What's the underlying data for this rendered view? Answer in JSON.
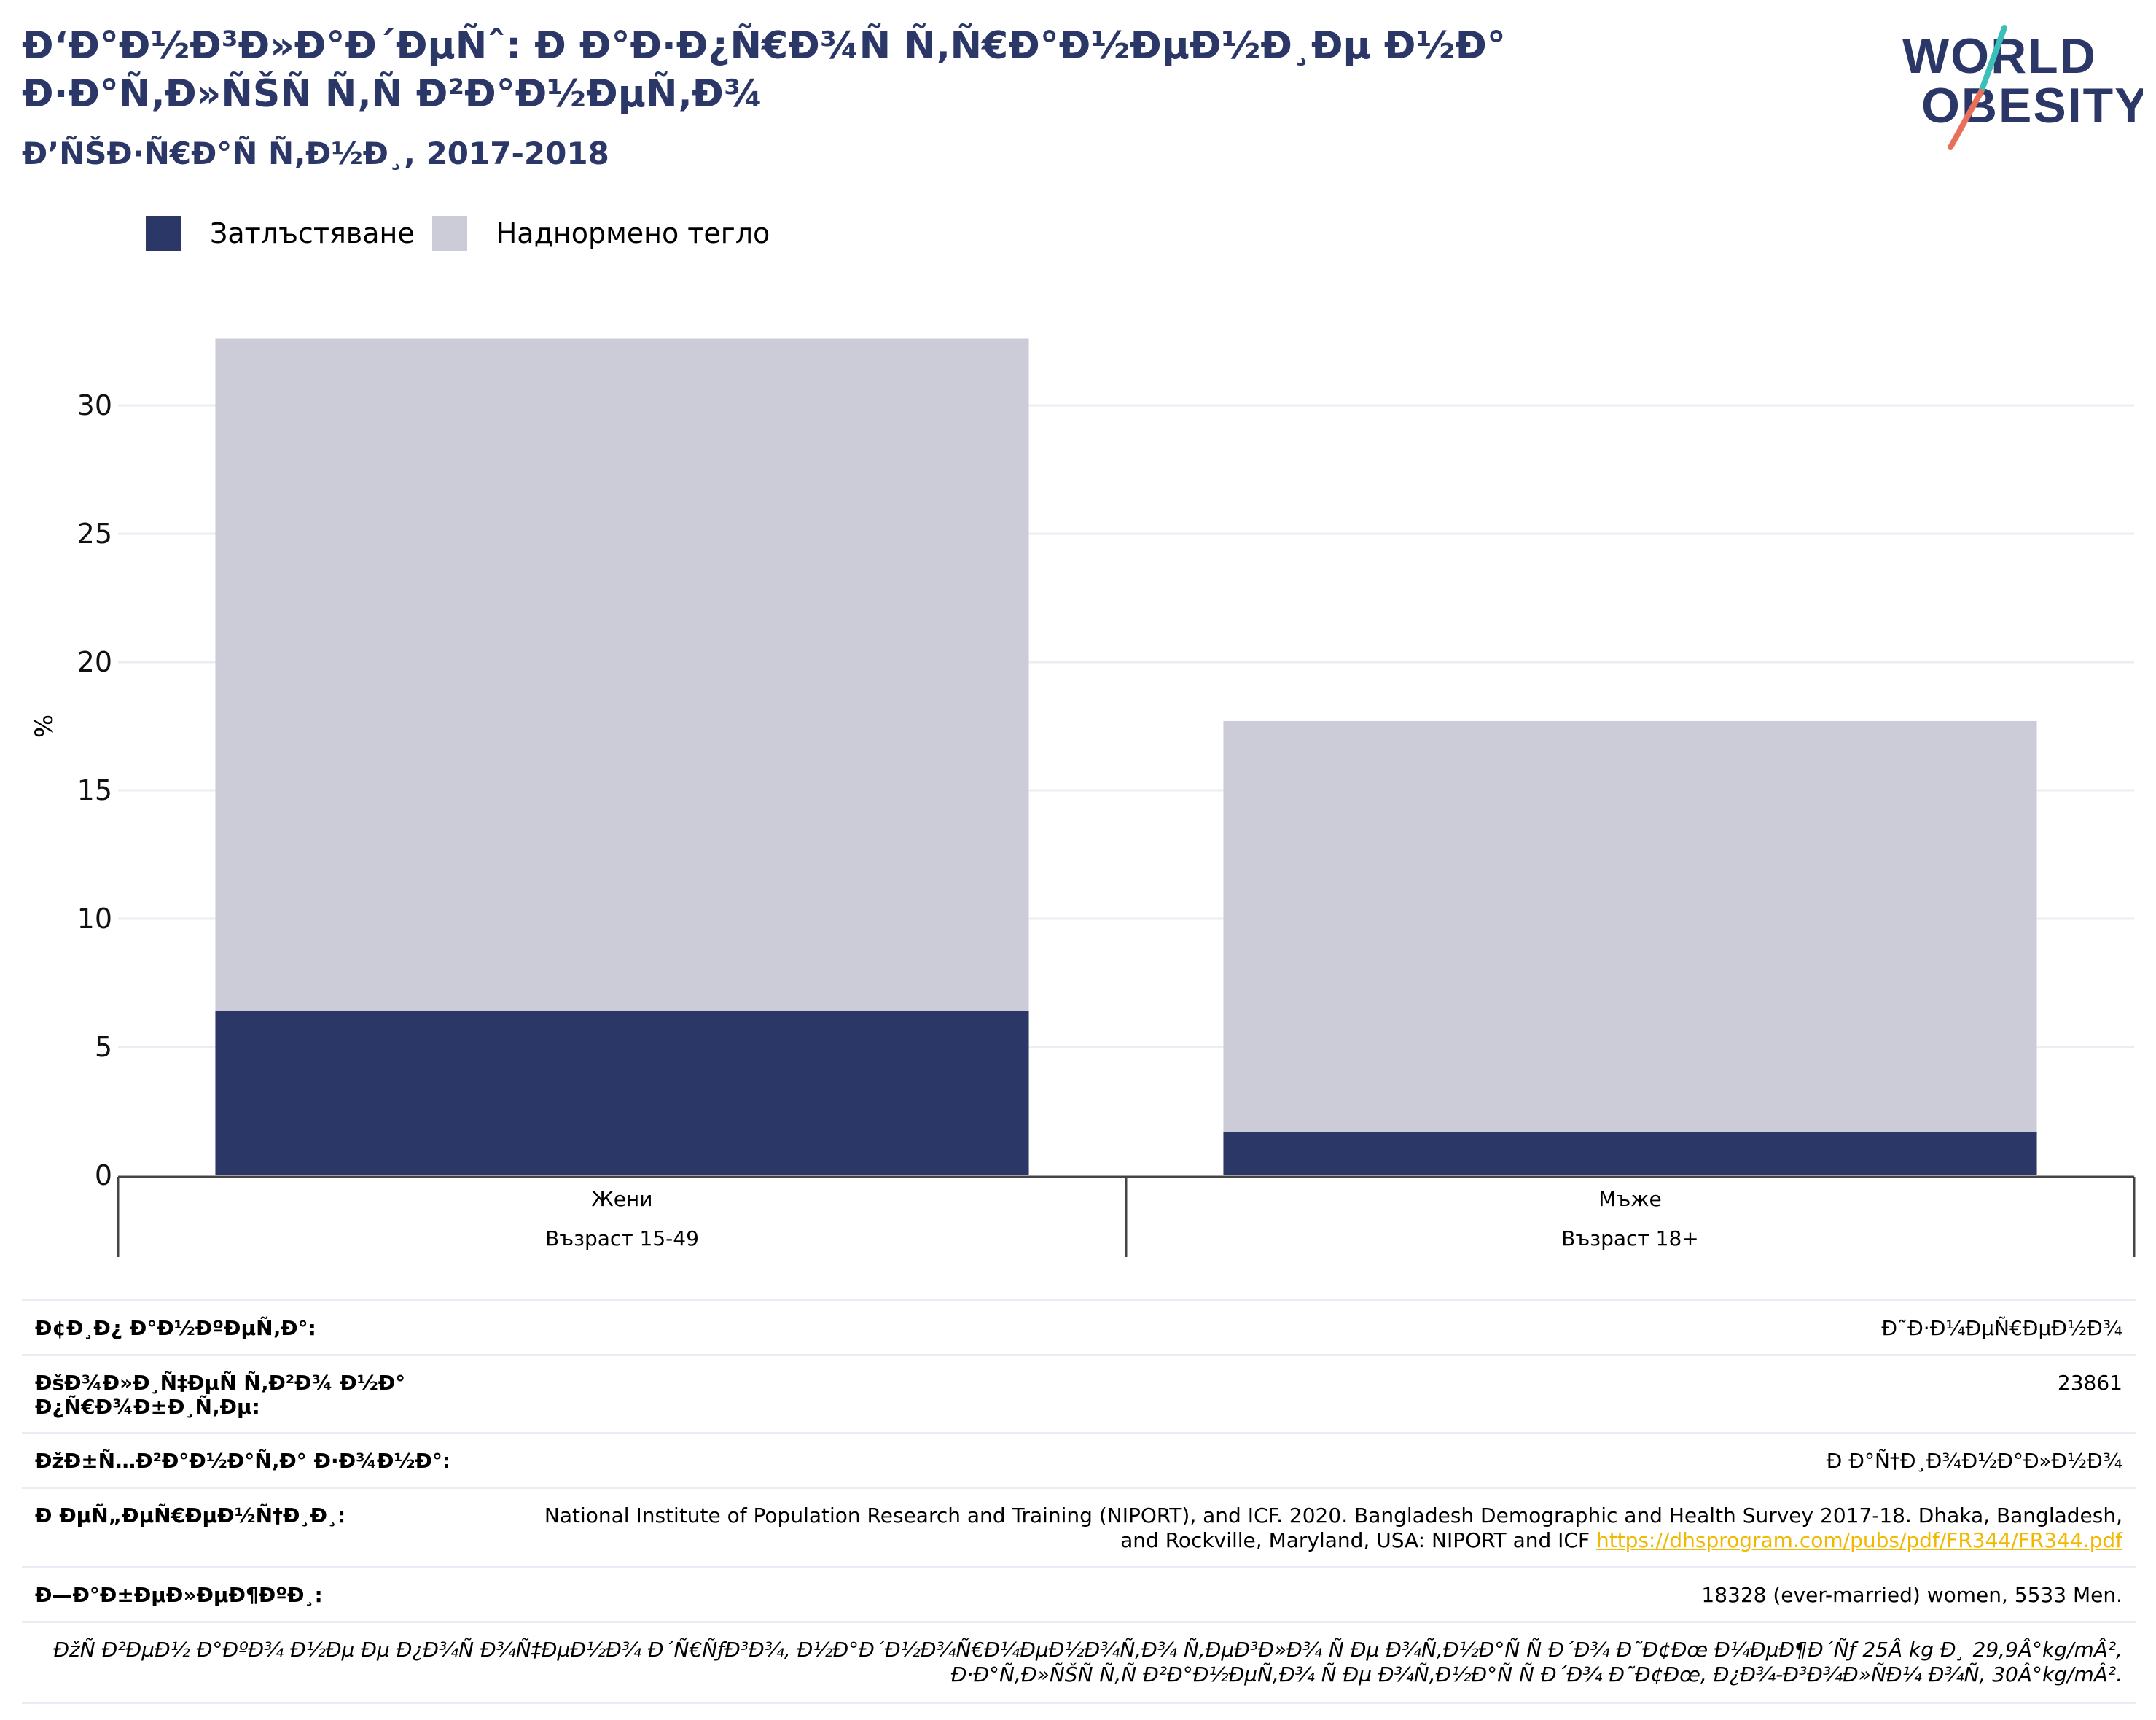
{
  "header": {
    "title": "Ð‘Ð°Ð½Ð³Ð»Ð°Ð´ÐµÑˆ: Ð Ð°Ð·Ð¿Ñ€Ð¾Ñ Ñ‚Ñ€Ð°Ð½ÐµÐ½Ð¸Ðµ Ð½Ð° Ð·Ð°Ñ‚Ð»ÑŠÑ Ñ‚Ñ Ð²Ð°Ð½ÐµÑ‚Ð¾",
    "subtitle": "Ð’ÑŠÐ·Ñ€Ð°Ñ Ñ‚Ð½Ð¸, 2017-2018",
    "logo_line1": "WORLD",
    "logo_line2": "OBESITY"
  },
  "colors": {
    "obesity": "#2b3766",
    "overweight": "#cbccd8",
    "title": "#2b3766",
    "logo_slash_teal": "#3bbfb8",
    "logo_slash_coral": "#e8705a",
    "link": "#f0b800"
  },
  "chart_data": {
    "type": "bar",
    "stacked": true,
    "categories": [
      "Жени",
      "Мъже"
    ],
    "category_sublabels": [
      "Възраст 15-49",
      "Възраст 18+"
    ],
    "series": [
      {
        "name": "Затлъстяване",
        "values": [
          6.4,
          1.7
        ]
      },
      {
        "name": "Наднормено тегло",
        "values": [
          26.2,
          16.0
        ]
      }
    ],
    "ylabel": "%",
    "yticks": [
      0,
      5,
      10,
      15,
      20,
      25,
      30
    ],
    "ylim": [
      0,
      35
    ],
    "grid": true,
    "legend": "top-left"
  },
  "meta": {
    "rows": [
      {
        "key": "Ð¢Ð¸Ð¿ Ð°Ð½ÐºÐµÑ‚Ð°:",
        "value": "Ð˜Ð·Ð¼ÐµÑ€ÐµÐ½Ð¾"
      },
      {
        "key": "ÐšÐ¾Ð»Ð¸Ñ‡ÐµÑ Ñ‚Ð²Ð¾ Ð½Ð° Ð¿Ñ€Ð¾Ð±Ð¸Ñ‚Ðµ:",
        "value": "23861"
      },
      {
        "key": "ÐžÐ±Ñ…Ð²Ð°Ð½Ð°Ñ‚Ð° Ð·Ð¾Ð½Ð°:",
        "value": "Ð Ð°Ñ†Ð¸Ð¾Ð½Ð°Ð»Ð½Ð¾"
      },
      {
        "key": "Ð ÐµÑ„ÐµÑ€ÐµÐ½Ñ†Ð¸Ð¸:",
        "value": "National Institute of Population Research and Training (NIPORT), and ICF. 2020. Bangladesh Demographic and Health Survey 2017-18. Dhaka, Bangladesh, and Rockville, Maryland, USA: NIPORT and ICF",
        "link": "https://dhsprogram.com/pubs/pdf/FR344/FR344.pdf"
      },
      {
        "key": "Ð—Ð°Ð±ÐµÐ»ÐµÐ¶ÐºÐ¸:",
        "value": "18328 (ever-married) women, 5533 Men."
      }
    ],
    "note": "ÐžÑ Ð²ÐµÐ½ Ð°ÐºÐ¾ Ð½Ðµ Ðµ Ð¿Ð¾Ñ Ð¾Ñ‡ÐµÐ½Ð¾ Ð´Ñ€ÑƒÐ³Ð¾, Ð½Ð°Ð´Ð½Ð¾Ñ€Ð¼ÐµÐ½Ð¾Ñ‚Ð¾ Ñ‚ÐµÐ³Ð»Ð¾ Ñ Ðµ Ð¾Ñ‚Ð½Ð°Ñ Ñ  Ð´Ð¾ Ð˜Ð¢Ðœ Ð¼ÐµÐ¶Ð´Ñƒ 25Â kg Ð¸ 29,9Â°kg/mÂ², Ð·Ð°Ñ‚Ð»ÑŠÑ Ñ‚Ñ Ð²Ð°Ð½ÐµÑ‚Ð¾ Ñ Ðµ Ð¾Ñ‚Ð½Ð°Ñ Ñ  Ð´Ð¾ Ð˜Ð¢Ðœ, Ð¿Ð¾-Ð³Ð¾Ð»ÑÐ¼ Ð¾Ñ‚ 30Â°kg/mÂ²."
  }
}
